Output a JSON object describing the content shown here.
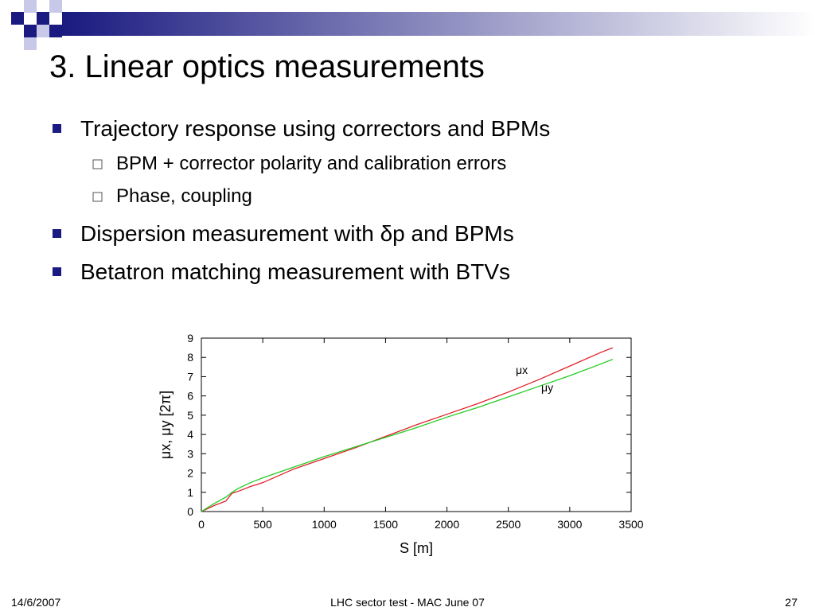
{
  "slide": {
    "title": "3. Linear optics measurements",
    "bullets": [
      {
        "text": "Trajectory response using correctors and BPMs",
        "level": 1
      },
      {
        "text": "BPM + corrector polarity and calibration errors",
        "level": 2
      },
      {
        "text": "Phase, coupling",
        "level": 2
      },
      {
        "text": "Dispersion measurement with δp and BPMs",
        "level": 1
      },
      {
        "text": "Betatron matching measurement with BTVs",
        "level": 1
      }
    ],
    "footer": {
      "left": "14/6/2007",
      "center": "LHC sector test - MAC June 07",
      "right": "27"
    }
  },
  "chart_data": {
    "type": "line",
    "xlabel": "S [m]",
    "ylabel": "μx, μy [2π]",
    "x": [
      0,
      100,
      200,
      250,
      300,
      400,
      500,
      750,
      1000,
      1250,
      1500,
      1750,
      2000,
      2250,
      2500,
      2750,
      3000,
      3250,
      3350
    ],
    "series": [
      {
        "name": "μx",
        "color": "#e0202a",
        "values": [
          0,
          0.3,
          0.55,
          0.95,
          1.05,
          1.3,
          1.5,
          2.2,
          2.75,
          3.3,
          3.9,
          4.5,
          5.05,
          5.6,
          6.2,
          6.85,
          7.55,
          8.25,
          8.5
        ]
      },
      {
        "name": "μy",
        "color": "#22cc22",
        "values": [
          0,
          0.4,
          0.75,
          1.0,
          1.2,
          1.5,
          1.75,
          2.3,
          2.85,
          3.35,
          3.85,
          4.35,
          4.9,
          5.4,
          5.95,
          6.5,
          7.05,
          7.65,
          7.9
        ]
      }
    ],
    "xlim": [
      0,
      3500
    ],
    "xticks": [
      0,
      500,
      1000,
      1500,
      2000,
      2500,
      3000,
      3500
    ],
    "ylim": [
      0,
      9
    ],
    "yticks": [
      0,
      1,
      2,
      3,
      4,
      5,
      6,
      7,
      8,
      9
    ]
  }
}
